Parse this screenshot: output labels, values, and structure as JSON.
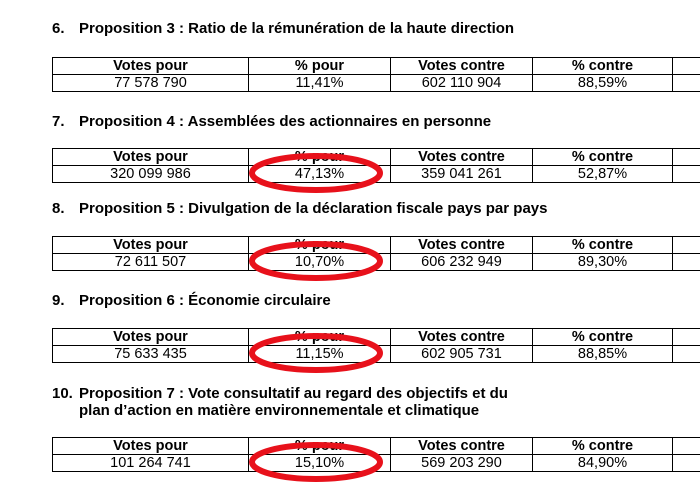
{
  "sections": [
    {
      "number": "6.",
      "title": "Proposition 3 : Ratio de la rémunération de la haute direction",
      "headers": [
        "Votes pour",
        "% pour",
        "Votes contre",
        "% contre"
      ],
      "row": [
        "77 578 790",
        "11,41%",
        "602 110 904",
        "88,59%"
      ]
    },
    {
      "number": "7.",
      "title": "Proposition 4 : Assemblées des actionnaires en personne",
      "headers": [
        "Votes pour",
        "% pour",
        "Votes contre",
        "% contre"
      ],
      "row": [
        "320 099 986",
        "47,13%",
        "359 041 261",
        "52,87%"
      ]
    },
    {
      "number": "8.",
      "title": "Proposition 5 : Divulgation de la déclaration fiscale pays par pays",
      "headers": [
        "Votes pour",
        "% pour",
        "Votes contre",
        "% contre"
      ],
      "row": [
        "72 611 507",
        "10,70%",
        "606 232 949",
        "89,30%"
      ]
    },
    {
      "number": "9.",
      "title": "Proposition 6 : Économie circulaire",
      "headers": [
        "Votes pour",
        "% pour",
        "Votes contre",
        "% contre"
      ],
      "row": [
        "75 633 435",
        "11,15%",
        "602 905 731",
        "88,85%"
      ]
    },
    {
      "number": "10.",
      "title": "Proposition 7 : Vote consultatif au regard des objectifs et du plan d’action en matière environnementale et climatique",
      "headers": [
        "Votes pour",
        "% pour",
        "Votes contre",
        "% contre"
      ],
      "row": [
        "101 264 741",
        "15,10%",
        "569 203 290",
        "84,90%"
      ]
    }
  ]
}
